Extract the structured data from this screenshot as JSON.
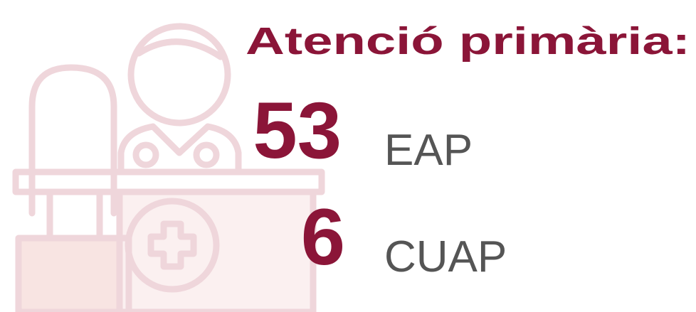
{
  "title": "Atenció primària:",
  "items": [
    {
      "number": "53",
      "label": "EAP"
    },
    {
      "number": "6",
      "label": "CUAP"
    }
  ]
}
